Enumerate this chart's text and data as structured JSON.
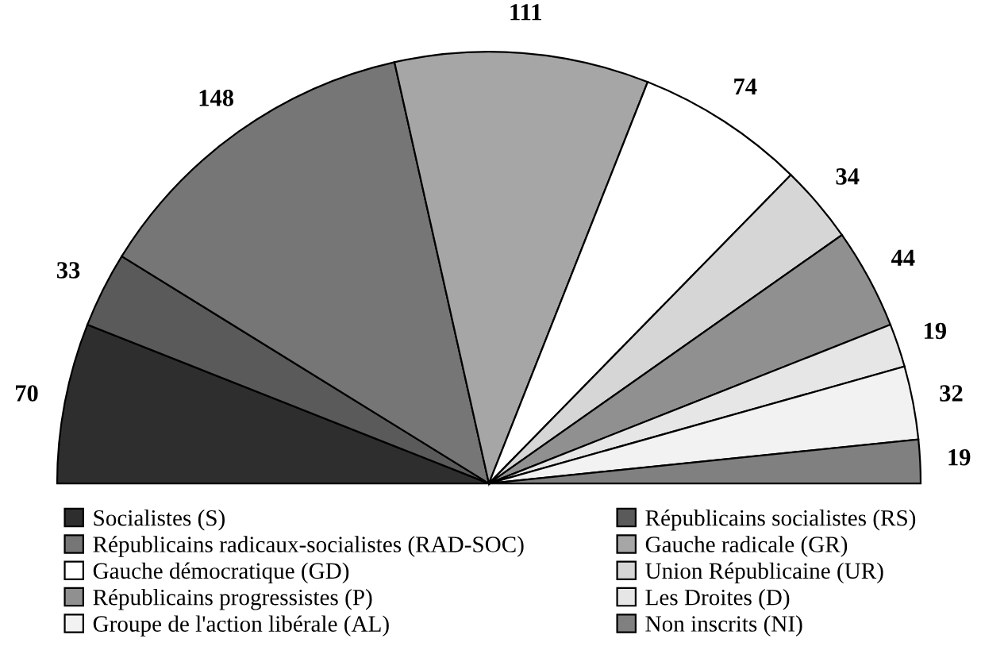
{
  "chart_data": {
    "type": "pie",
    "categories": [
      "Socialistes (S)",
      "Républicains socialistes (RS)",
      "Républicains radicaux-socialistes (RAD-SOC)",
      "Gauche radicale (GR)",
      "Gauche démocratique (GD)",
      "Union Républicaine (UR)",
      "Républicains progressistes (P)",
      "Les Droites (D)",
      "Groupe de l'action libérale (AL)",
      "Non inscrits (NI)"
    ],
    "values": [
      70,
      33,
      148,
      111,
      74,
      34,
      44,
      19,
      32,
      19
    ],
    "colors": [
      "#2e2e2e",
      "#5a5a5a",
      "#767676",
      "#a6a6a6",
      "#ffffff",
      "#d6d6d6",
      "#909090",
      "#e6e6e6",
      "#f2f2f2",
      "#808080"
    ],
    "data_labels": true,
    "legend": "bottom"
  }
}
